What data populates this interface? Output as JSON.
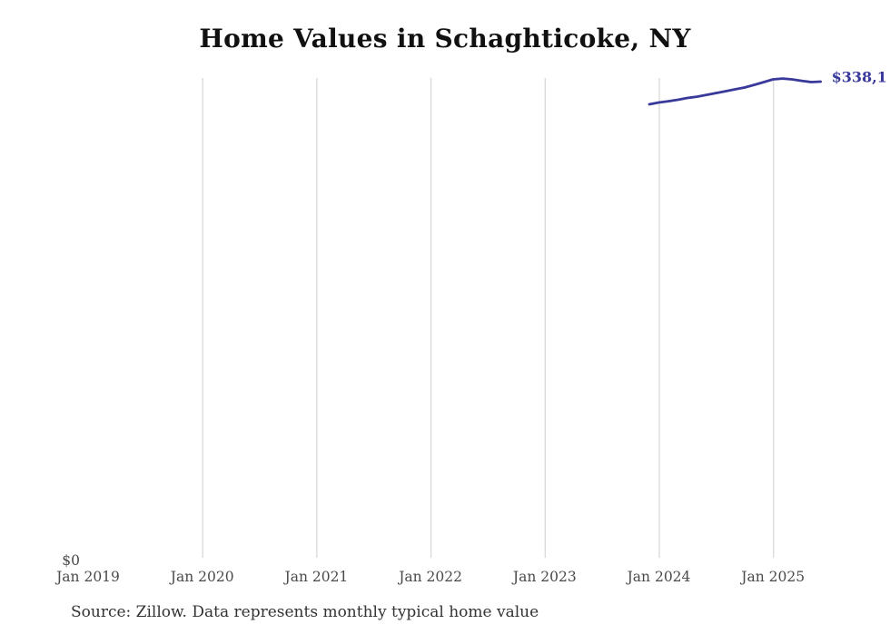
{
  "chart_data": {
    "type": "line",
    "title": "Home Values in Schaghticoke, NY",
    "source": "Source: Zillow. Data represents monthly typical home value",
    "end_label": "$338,1",
    "y_axis": {
      "min": 0,
      "min_label": "$0"
    },
    "x_axis": {
      "ticks": [
        {
          "label": "Jan 2019",
          "gridline": false
        },
        {
          "label": "Jan 2020",
          "gridline": true
        },
        {
          "label": "Jan 2021",
          "gridline": true
        },
        {
          "label": "Jan 2022",
          "gridline": true
        },
        {
          "label": "Jan 2023",
          "gridline": true
        },
        {
          "label": "Jan 2024",
          "gridline": true
        },
        {
          "label": "Jan 2025",
          "gridline": true
        }
      ]
    },
    "legend": "none",
    "grid": "vertical-only",
    "colors": {
      "line": "#39399b",
      "gridline": "#d9d9d9",
      "title": "#111111",
      "tick": "#4a4a4a",
      "source": "#333333"
    },
    "series": [
      {
        "name": "Typical home value",
        "points": [
          {
            "month": "2023-12",
            "value": 322000
          },
          {
            "month": "2024-01",
            "value": 323300
          },
          {
            "month": "2024-02",
            "value": 324200
          },
          {
            "month": "2024-03",
            "value": 325200
          },
          {
            "month": "2024-04",
            "value": 326500
          },
          {
            "month": "2024-05",
            "value": 327400
          },
          {
            "month": "2024-06",
            "value": 328700
          },
          {
            "month": "2024-07",
            "value": 330000
          },
          {
            "month": "2024-08",
            "value": 331300
          },
          {
            "month": "2024-09",
            "value": 332600
          },
          {
            "month": "2024-10",
            "value": 333900
          },
          {
            "month": "2024-11",
            "value": 335800
          },
          {
            "month": "2024-12",
            "value": 337700
          },
          {
            "month": "2025-01",
            "value": 339700
          },
          {
            "month": "2025-02",
            "value": 340300
          },
          {
            "month": "2025-03",
            "value": 339700
          },
          {
            "month": "2025-04",
            "value": 338700
          },
          {
            "month": "2025-05",
            "value": 337800
          },
          {
            "month": "2025-06",
            "value": 338100
          }
        ]
      }
    ]
  }
}
